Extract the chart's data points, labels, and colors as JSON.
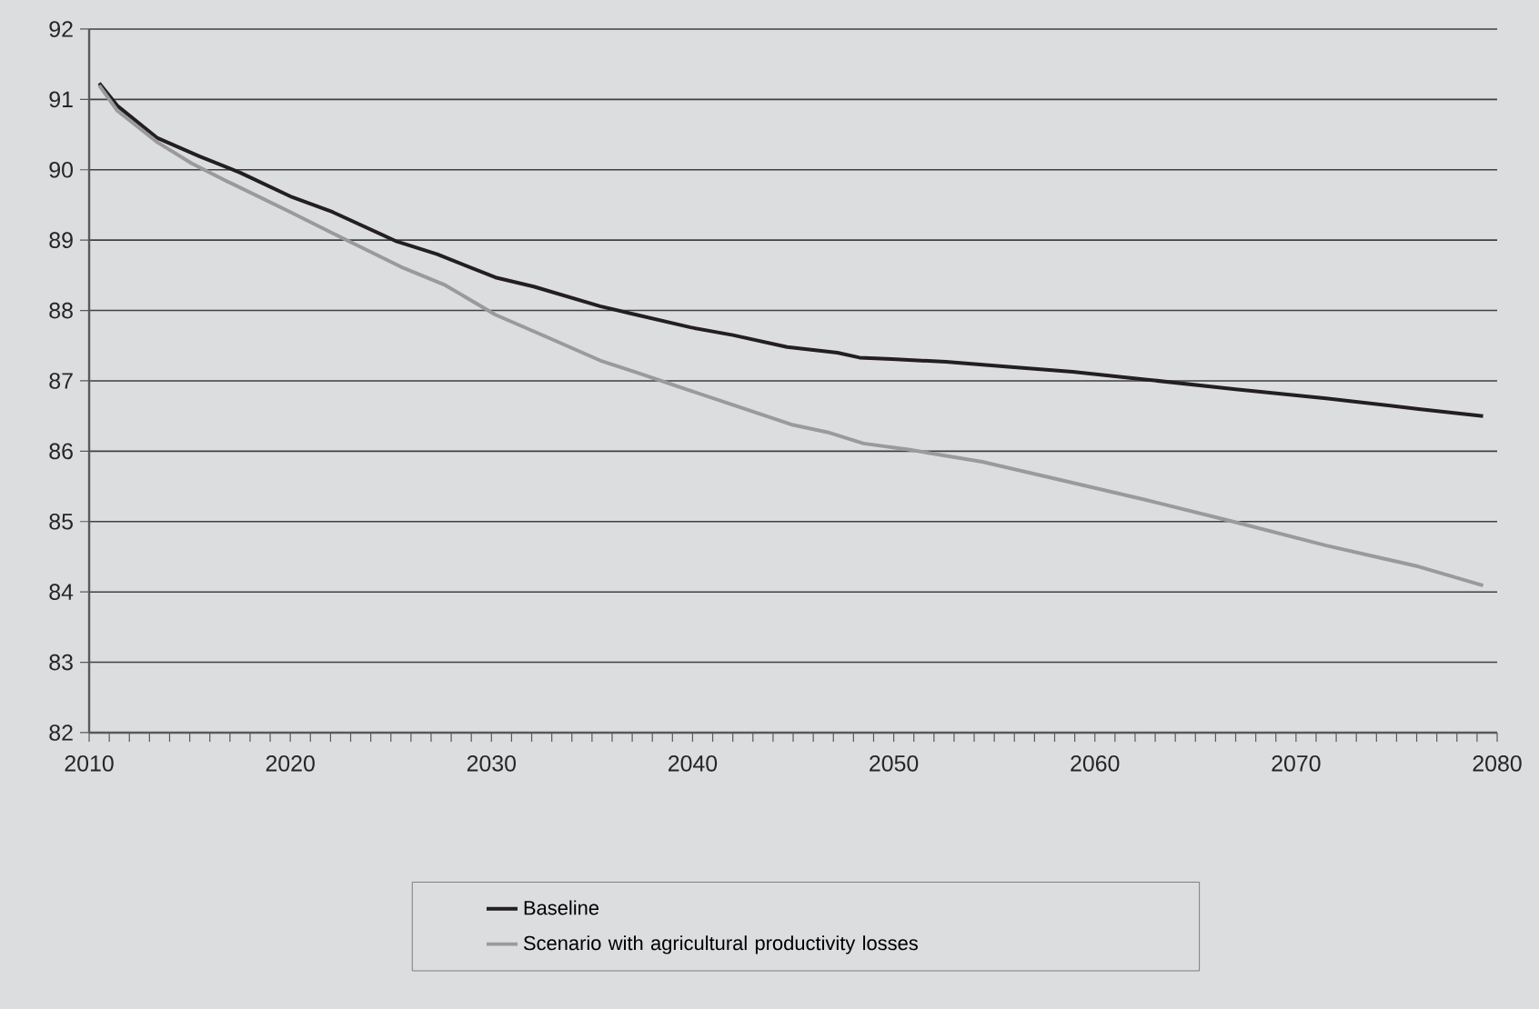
{
  "chart_data": {
    "type": "line",
    "xlim": [
      2010,
      2080
    ],
    "ylim": [
      82,
      92
    ],
    "yticks": [
      82,
      83,
      84,
      85,
      86,
      87,
      88,
      89,
      90,
      91,
      92
    ],
    "xticks": [
      2010,
      {
        "value": 2011,
        "label": null
      },
      {
        "value": 2012,
        "label": null
      },
      {
        "value": 2013,
        "label": null
      },
      {
        "value": 2014,
        "label": null
      },
      {
        "value": 2015,
        "label": null
      },
      {
        "value": 2016,
        "label": null
      },
      {
        "value": 2017,
        "label": null
      },
      {
        "value": 2018,
        "label": null
      },
      {
        "value": 2019,
        "label": null
      },
      2020,
      {
        "value": 2021,
        "label": null
      },
      {
        "value": 2022,
        "label": null
      },
      {
        "value": 2023,
        "label": null
      },
      {
        "value": 2024,
        "label": null
      },
      {
        "value": 2025,
        "label": null
      },
      {
        "value": 2026,
        "label": null
      },
      {
        "value": 2027,
        "label": null
      },
      {
        "value": 2028,
        "label": null
      },
      {
        "value": 2029,
        "label": null
      },
      2030,
      {
        "value": 2031,
        "label": null
      },
      {
        "value": 2032,
        "label": null
      },
      {
        "value": 2033,
        "label": null
      },
      {
        "value": 2034,
        "label": null
      },
      {
        "value": 2035,
        "label": null
      },
      {
        "value": 2036,
        "label": null
      },
      {
        "value": 2037,
        "label": null
      },
      {
        "value": 2038,
        "label": null
      },
      {
        "value": 2039,
        "label": null
      },
      2040,
      {
        "value": 2041,
        "label": null
      },
      {
        "value": 2042,
        "label": null
      },
      {
        "value": 2043,
        "label": null
      },
      {
        "value": 2044,
        "label": null
      },
      {
        "value": 2045,
        "label": null
      },
      {
        "value": 2046,
        "label": null
      },
      {
        "value": 2047,
        "label": null
      },
      {
        "value": 2048,
        "label": null
      },
      {
        "value": 2049,
        "label": null
      },
      2050,
      {
        "value": 2051,
        "label": null
      },
      {
        "value": 2052,
        "label": null
      },
      {
        "value": 2053,
        "label": null
      },
      {
        "value": 2054,
        "label": null
      },
      {
        "value": 2055,
        "label": null
      },
      {
        "value": 2056,
        "label": null
      },
      {
        "value": 2057,
        "label": null
      },
      {
        "value": 2058,
        "label": null
      },
      {
        "value": 2059,
        "label": null
      },
      2060,
      {
        "value": 2061,
        "label": null
      },
      {
        "value": 2062,
        "label": null
      },
      {
        "value": 2063,
        "label": null
      },
      {
        "value": 2064,
        "label": null
      },
      {
        "value": 2065,
        "label": null
      },
      {
        "value": 2066,
        "label": null
      },
      {
        "value": 2067,
        "label": null
      },
      {
        "value": 2068,
        "label": null
      },
      {
        "value": 2069,
        "label": null
      },
      2070,
      {
        "value": 2071,
        "label": null
      },
      {
        "value": 2072,
        "label": null
      },
      {
        "value": 2073,
        "label": null
      },
      {
        "value": 2074,
        "label": null
      },
      {
        "value": 2075,
        "label": null
      },
      {
        "value": 2076,
        "label": null
      },
      {
        "value": 2077,
        "label": null
      },
      {
        "value": 2078,
        "label": null
      },
      {
        "value": 2079,
        "label": null
      },
      2080
    ],
    "grid": "y",
    "legend": "bottom",
    "line_style": "solid",
    "marker": "none",
    "series": [
      {
        "name": "Baseline",
        "color": "#231f20",
        "x": [
          2010.5,
          2011.4,
          2013.4,
          2015.5,
          2017.5,
          2020.1,
          2022.1,
          2025.3,
          2027.3,
          2030.2,
          2032.1,
          2035.4,
          2037.2,
          2039.9,
          2042.0,
          2044.7,
          2047.2,
          2048.3,
          2049.9,
          2052.6,
          2055.7,
          2058.9,
          2062.5,
          2067.0,
          2071.5,
          2076.1,
          2079.3
        ],
        "values": [
          91.23,
          90.91,
          90.45,
          90.19,
          89.96,
          89.61,
          89.4,
          88.98,
          88.8,
          88.47,
          88.34,
          88.06,
          87.94,
          87.76,
          87.65,
          87.48,
          87.4,
          87.33,
          87.31,
          87.27,
          87.2,
          87.13,
          87.02,
          86.88,
          86.75,
          86.6,
          86.5
        ]
      },
      {
        "name": "Scenario with agricultural productivity losses",
        "color": "#9a9a9a",
        "x": [
          2010.5,
          2011.4,
          2013.4,
          2015.1,
          2016.9,
          2020.0,
          2022.1,
          2025.5,
          2027.7,
          2030.2,
          2032.7,
          2035.4,
          2037.2,
          2039.9,
          2042.0,
          2044.9,
          2046.7,
          2048.5,
          2050.8,
          2054.4,
          2058.0,
          2062.5,
          2067.0,
          2071.5,
          2076.1,
          2079.3
        ],
        "values": [
          91.2,
          90.84,
          90.39,
          90.09,
          89.83,
          89.4,
          89.1,
          88.62,
          88.36,
          87.94,
          87.63,
          87.29,
          87.12,
          86.86,
          86.66,
          86.38,
          86.27,
          86.11,
          86.02,
          85.85,
          85.61,
          85.31,
          84.99,
          84.66,
          84.36,
          84.09
        ]
      }
    ]
  }
}
